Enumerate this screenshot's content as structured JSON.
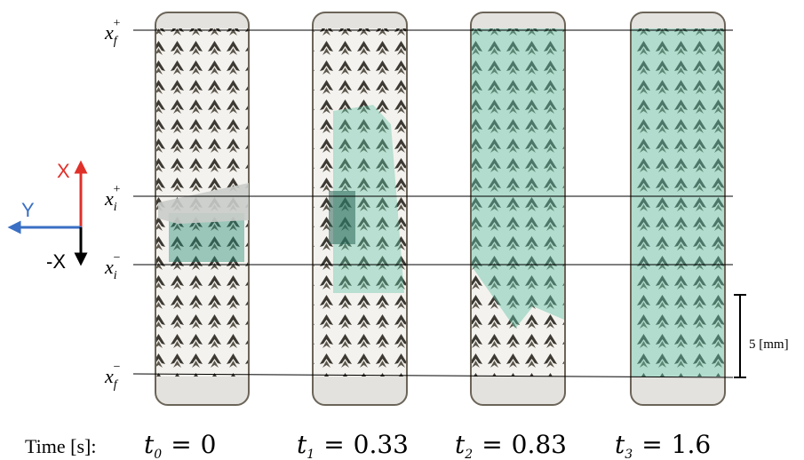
{
  "levels": [
    {
      "symbol": "x",
      "sub": "f",
      "sup": "+"
    },
    {
      "symbol": "x",
      "sub": "i",
      "sup": "+"
    },
    {
      "symbol": "x",
      "sub": "i",
      "sup": "−"
    },
    {
      "symbol": "x",
      "sub": "f",
      "sup": "−"
    }
  ],
  "axes": {
    "up": "X",
    "left": "Y",
    "down": "-X"
  },
  "scale_bar": "5 [mm]",
  "time_heading": "Time [s]:",
  "times": [
    {
      "symbol": "t",
      "sub": "0",
      "relation": "=",
      "value": "0"
    },
    {
      "symbol": "t",
      "sub": "1",
      "relation": "=",
      "value": "0.33"
    },
    {
      "symbol": "t",
      "sub": "2",
      "relation": "=",
      "value": "0.83"
    },
    {
      "symbol": "t",
      "sub": "3",
      "relation": "=",
      "value": "1.6"
    }
  ]
}
